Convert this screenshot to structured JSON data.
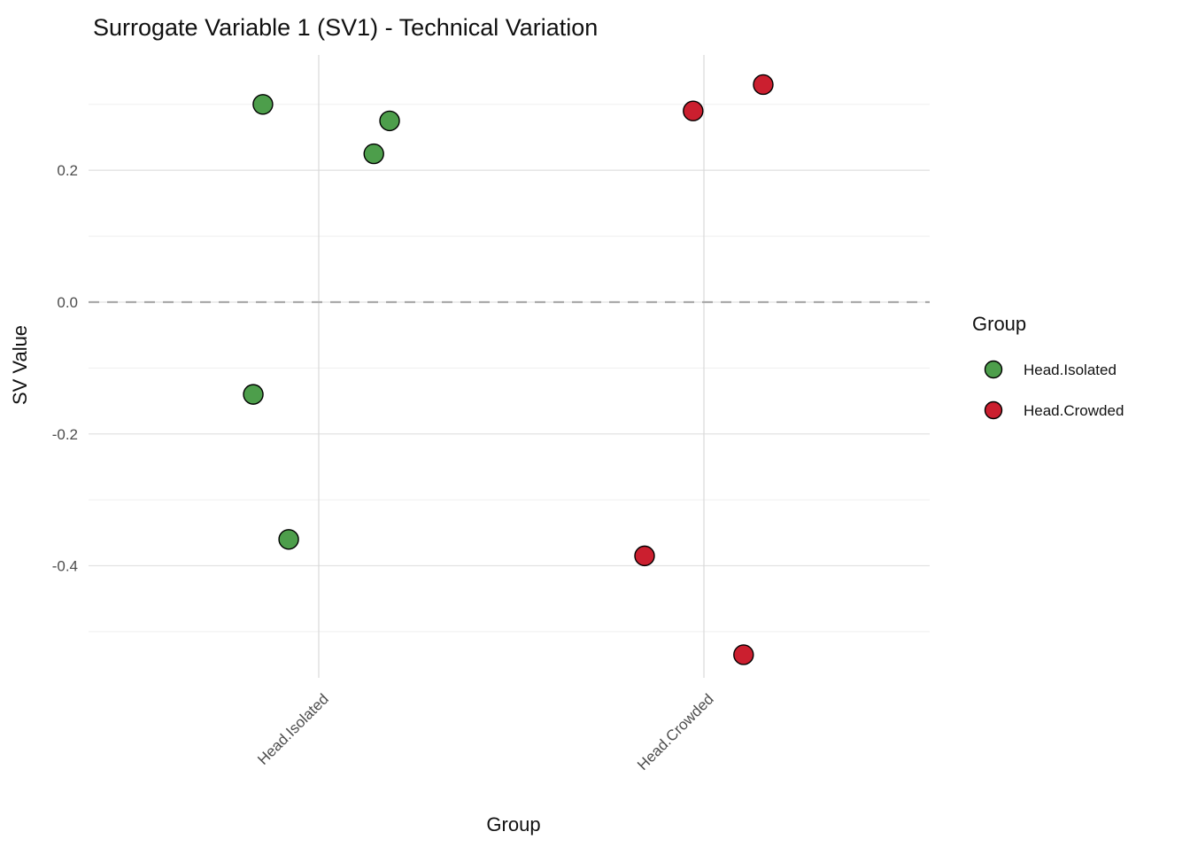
{
  "title": "Surrogate Variable 1 (SV1) - Technical Variation",
  "chart_data": {
    "type": "scatter",
    "title": "Surrogate Variable 1 (SV1) - Technical Variation",
    "xlabel": "Group",
    "ylabel": "SV Value",
    "categories": [
      "Head.Isolated",
      "Head.Crowded"
    ],
    "ylim": [
      -0.57,
      0.375
    ],
    "yticks": [
      {
        "label": "0.2",
        "value": 0.2
      },
      {
        "label": "0.0",
        "value": 0.0
      },
      {
        "label": "-0.2",
        "value": -0.2
      },
      {
        "label": "-0.4",
        "value": -0.4
      }
    ],
    "yticks_minor": [
      0.3,
      0.1,
      -0.1,
      -0.3,
      -0.5
    ],
    "grid": true,
    "zero_line": {
      "value": 0.0,
      "style": "dashed",
      "color": "#aaaaaa"
    },
    "legend": {
      "title": "Group",
      "position": "right"
    },
    "point_style": {
      "radius": 11,
      "stroke": "#000000",
      "stroke_width": 1.4
    },
    "series": [
      {
        "name": "Head.Isolated",
        "color": "#4d9e4b",
        "category_index": 0,
        "points": [
          {
            "jitter": -0.145,
            "value": 0.3
          },
          {
            "jitter": 0.184,
            "value": 0.275
          },
          {
            "jitter": 0.143,
            "value": 0.225
          },
          {
            "jitter": -0.17,
            "value": -0.14
          },
          {
            "jitter": -0.078,
            "value": -0.36
          }
        ]
      },
      {
        "name": "Head.Crowded",
        "color": "#cb1f2f",
        "category_index": 1,
        "points": [
          {
            "jitter": -0.028,
            "value": 0.29
          },
          {
            "jitter": 0.154,
            "value": 0.33
          },
          {
            "jitter": -0.154,
            "value": -0.385
          },
          {
            "jitter": 0.103,
            "value": -0.535
          }
        ]
      }
    ]
  }
}
